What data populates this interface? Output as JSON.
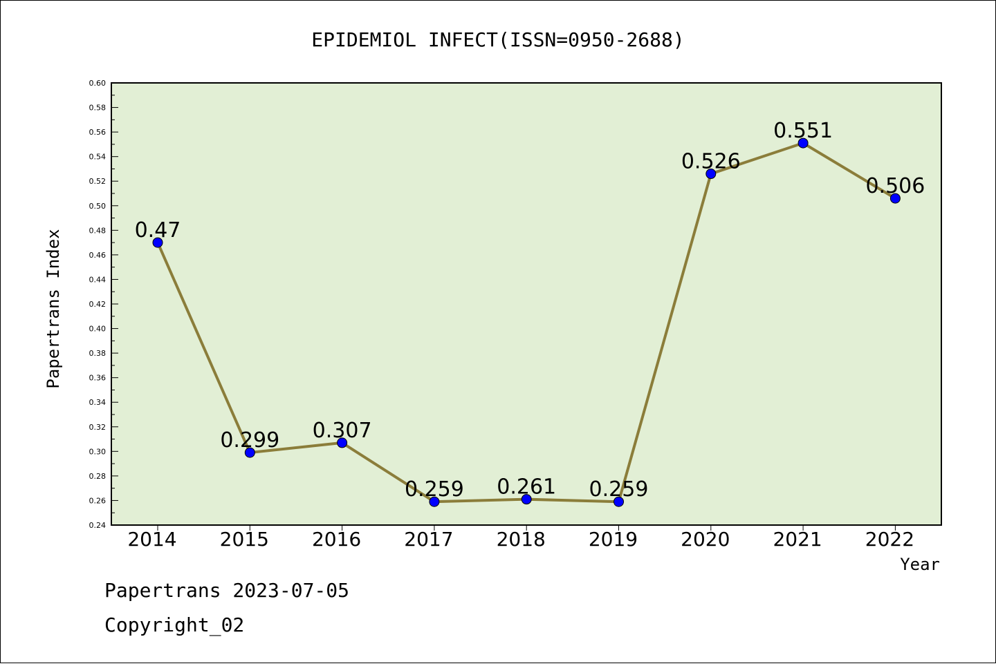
{
  "chart_data": {
    "type": "line",
    "title": "EPIDEMIOL INFECT(ISSN=0950-2688)",
    "xlabel": "Year",
    "ylabel": "Papertrans Index",
    "categories": [
      "2014",
      "2015",
      "2016",
      "2017",
      "2018",
      "2019",
      "2020",
      "2021",
      "2022"
    ],
    "values": [
      0.47,
      0.299,
      0.307,
      0.259,
      0.261,
      0.259,
      0.526,
      0.551,
      0.506
    ],
    "value_labels": [
      "0.47",
      "0.299",
      "0.307",
      "0.259",
      "0.261",
      "0.259",
      "0.526",
      "0.551",
      "0.506"
    ],
    "ylim": [
      0.24,
      0.6
    ],
    "yticks": [
      "0.24",
      "0.26",
      "0.28",
      "0.30",
      "0.32",
      "0.34",
      "0.36",
      "0.38",
      "0.40",
      "0.42",
      "0.44",
      "0.46",
      "0.48",
      "0.50",
      "0.52",
      "0.54",
      "0.56",
      "0.58",
      "0.60"
    ],
    "grid": false,
    "colors": {
      "plot_background": "#e2efd5",
      "line": "#8b7d3a",
      "marker": "#0000ff"
    }
  },
  "footer": {
    "date_line": "Papertrans 2023-07-05",
    "copyright": "Copyright_02"
  }
}
